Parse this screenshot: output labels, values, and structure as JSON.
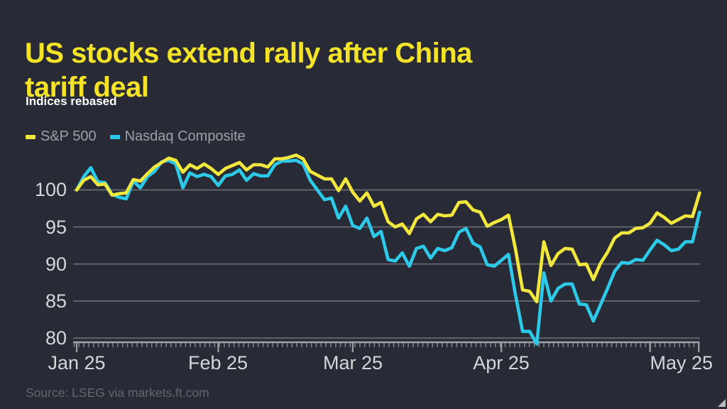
{
  "title_lines": [
    "US stocks extend rally after China",
    "tariff deal"
  ],
  "title": "US stocks extend rally after China tariff deal",
  "subtitle": "Indices rebased",
  "source": "Source: LSEG via markets.ft.com",
  "colors": {
    "background": "#282b35",
    "title": "#f4e327",
    "subtitle": "#ffffff",
    "legend_text": "#9aa0a8",
    "grid": "#676b73",
    "axis": "#9ea1a6",
    "tick_label": "#d5d6d9",
    "source": "#62666e",
    "sp500": "#f2e73c",
    "nasdaq": "#2dc9e8",
    "resize_handle": "#b9babc"
  },
  "chart_data": {
    "type": "line",
    "title": "US stocks extend rally after China tariff deal",
    "subtitle": "Indices rebased",
    "xlabel": "",
    "ylabel": "",
    "grid": "horizontal",
    "legend_position": "top-left",
    "ylim": [
      78,
      106
    ],
    "yticks": [
      100,
      95,
      90,
      85,
      80
    ],
    "xticklabels": [
      "Jan 25",
      "Feb 25",
      "Mar 25",
      "Apr 25",
      "May 25"
    ],
    "month_start_indices": [
      0,
      20,
      39,
      60,
      81
    ],
    "x": [
      "Jan 2",
      "Jan 3",
      "Jan 6",
      "Jan 7",
      "Jan 8",
      "Jan 10",
      "Jan 13",
      "Jan 14",
      "Jan 15",
      "Jan 16",
      "Jan 17",
      "Jan 21",
      "Jan 22",
      "Jan 23",
      "Jan 24",
      "Jan 27",
      "Jan 28",
      "Jan 29",
      "Jan 30",
      "Jan 31",
      "Feb 3",
      "Feb 4",
      "Feb 5",
      "Feb 6",
      "Feb 7",
      "Feb 10",
      "Feb 11",
      "Feb 12",
      "Feb 13",
      "Feb 14",
      "Feb 18",
      "Feb 19",
      "Feb 20",
      "Feb 21",
      "Feb 24",
      "Feb 25",
      "Feb 26",
      "Feb 27",
      "Feb 28",
      "Mar 3",
      "Mar 4",
      "Mar 5",
      "Mar 6",
      "Mar 7",
      "Mar 10",
      "Mar 11",
      "Mar 12",
      "Mar 13",
      "Mar 14",
      "Mar 17",
      "Mar 18",
      "Mar 19",
      "Mar 20",
      "Mar 21",
      "Mar 24",
      "Mar 25",
      "Mar 26",
      "Mar 27",
      "Mar 28",
      "Mar 31",
      "Apr 1",
      "Apr 2",
      "Apr 3",
      "Apr 4",
      "Apr 7",
      "Apr 8",
      "Apr 9",
      "Apr 10",
      "Apr 11",
      "Apr 14",
      "Apr 15",
      "Apr 16",
      "Apr 17",
      "Apr 21",
      "Apr 22",
      "Apr 23",
      "Apr 24",
      "Apr 25",
      "Apr 28",
      "Apr 29",
      "Apr 30",
      "May 1",
      "May 2",
      "May 5",
      "May 6",
      "May 7",
      "May 8",
      "May 9",
      "May 12"
    ],
    "series": [
      {
        "name": "S&P 500",
        "color": "#f2e73c",
        "values": [
          100,
          101.3,
          101.8,
          100.7,
          100.8,
          99.3,
          99.5,
          99.6,
          101.4,
          101.2,
          102.2,
          103.1,
          103.7,
          104.3,
          104,
          102.4,
          103.4,
          102.9,
          103.5,
          102.9,
          102.1,
          102.9,
          103.3,
          103.7,
          102.7,
          103.4,
          103.4,
          103.1,
          104.2,
          104.2,
          104.4,
          104.7,
          104.2,
          102.5,
          102,
          101.5,
          101.5,
          99.9,
          101.5,
          99.7,
          98.5,
          99.6,
          97.8,
          98.3,
          95.7,
          95,
          95.4,
          94.1,
          96.1,
          96.7,
          95.7,
          96.7,
          96.5,
          96.6,
          98.3,
          98.4,
          97.3,
          97,
          95.1,
          95.6,
          96,
          96.6,
          92,
          86.5,
          86.3,
          84.9,
          93,
          89.8,
          91.4,
          92.1,
          92,
          89.9,
          90,
          87.9,
          90.1,
          91.6,
          93.5,
          94.2,
          94.2,
          94.8,
          94.9,
          95.5,
          96.9,
          96.3,
          95.5,
          96,
          96.5,
          96.4,
          99.6
        ]
      },
      {
        "name": "Nasdaq Composite",
        "color": "#2dc9e8",
        "values": [
          100,
          101.8,
          103,
          101.1,
          101,
          99.4,
          99,
          98.8,
          101.2,
          100.3,
          101.8,
          102.5,
          103.8,
          104,
          103.5,
          100.3,
          102.3,
          101.8,
          102.1,
          101.8,
          100.6,
          101.9,
          102.1,
          102.7,
          101.3,
          102.2,
          101.9,
          101.9,
          103.4,
          103.9,
          103.9,
          104,
          103.5,
          101.3,
          100,
          98.7,
          98.9,
          96.2,
          97.8,
          95.2,
          94.8,
          96.2,
          93.7,
          94.4,
          90.6,
          90.4,
          91.5,
          89.7,
          92.1,
          92.4,
          90.8,
          92.1,
          91.8,
          92.2,
          94.3,
          94.8,
          92.8,
          92.3,
          89.9,
          89.7,
          90.5,
          91.3,
          85.8,
          80.9,
          80.9,
          79.2,
          88.8,
          85,
          86.7,
          87.3,
          87.3,
          84.6,
          84.5,
          82.3,
          84.5,
          86.7,
          89,
          90.2,
          90.1,
          90.6,
          90.5,
          91.9,
          93.2,
          92.6,
          91.8,
          92,
          93,
          93,
          97
        ]
      }
    ]
  }
}
